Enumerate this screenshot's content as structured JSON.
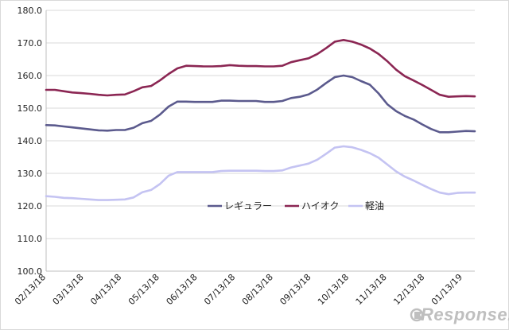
{
  "chart_data": {
    "type": "line",
    "title": "",
    "xlabel": "",
    "ylabel": "",
    "ylim": [
      100,
      180
    ],
    "yticks": [
      100.0,
      110.0,
      120.0,
      130.0,
      140.0,
      150.0,
      160.0,
      170.0,
      180.0
    ],
    "ytick_labels": [
      "100.0",
      "110.0",
      "120.0",
      "130.0",
      "140.0",
      "150.0",
      "160.0",
      "170.0",
      "180.0"
    ],
    "grid": true,
    "legend_position": "center",
    "x_tick_labels": [
      "02/13/18",
      "03/13/18",
      "04/13/18",
      "05/13/18",
      "06/13/18",
      "07/13/18",
      "08/13/18",
      "09/13/18",
      "10/13/18",
      "11/13/18",
      "12/13/18",
      "01/13/19"
    ],
    "weeks": 50,
    "series": [
      {
        "name": "レギュラー",
        "color": "#5b5a8d",
        "values": [
          144.8,
          144.7,
          144.4,
          144.1,
          143.8,
          143.5,
          143.2,
          143.1,
          143.3,
          143.3,
          144.0,
          145.4,
          146.1,
          148.0,
          150.5,
          152.0,
          152.0,
          151.9,
          151.9,
          151.9,
          152.3,
          152.3,
          152.2,
          152.2,
          152.2,
          151.9,
          151.9,
          152.2,
          153.1,
          153.5,
          154.2,
          155.7,
          157.7,
          159.5,
          160.0,
          159.5,
          158.3,
          157.2,
          154.5,
          151.2,
          149.1,
          147.6,
          146.5,
          145.0,
          143.6,
          142.6,
          142.6,
          142.8,
          143.0,
          142.9
        ]
      },
      {
        "name": "ハイオク",
        "color": "#8b2653",
        "values": [
          155.6,
          155.6,
          155.2,
          154.8,
          154.6,
          154.4,
          154.1,
          153.9,
          154.1,
          154.2,
          155.2,
          156.4,
          156.8,
          158.5,
          160.5,
          162.2,
          163.0,
          162.9,
          162.8,
          162.8,
          162.9,
          163.2,
          163.0,
          162.9,
          162.9,
          162.8,
          162.8,
          163.0,
          164.1,
          164.7,
          165.3,
          166.6,
          168.4,
          170.4,
          170.9,
          170.4,
          169.5,
          168.3,
          166.6,
          164.4,
          161.8,
          159.8,
          158.5,
          157.1,
          155.6,
          154.1,
          153.5,
          153.6,
          153.7,
          153.6
        ]
      },
      {
        "name": "軽油",
        "color": "#c4c3f2",
        "values": [
          123.0,
          122.8,
          122.5,
          122.4,
          122.2,
          122.0,
          121.8,
          121.8,
          121.9,
          122.0,
          122.6,
          124.2,
          124.9,
          126.7,
          129.3,
          130.4,
          130.4,
          130.4,
          130.4,
          130.4,
          130.7,
          130.8,
          130.8,
          130.8,
          130.8,
          130.7,
          130.7,
          130.9,
          131.8,
          132.4,
          133.0,
          134.2,
          136.0,
          137.9,
          138.3,
          138.0,
          137.2,
          136.2,
          134.8,
          132.7,
          130.6,
          129.0,
          127.8,
          126.5,
          125.2,
          124.1,
          123.6,
          124.0,
          124.1,
          124.1
        ]
      }
    ]
  },
  "watermark": {
    "text": "Response."
  }
}
